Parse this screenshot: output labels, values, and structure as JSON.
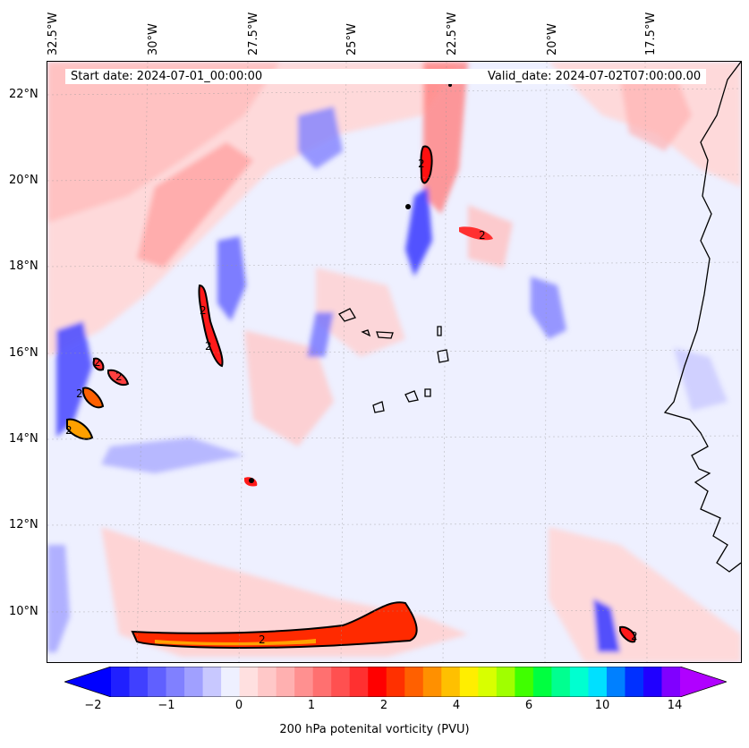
{
  "map": {
    "start_date": "Start date: 2024-07-01_00:00:00",
    "valid_date": "Valid_date: 2024-07-02T07:00:00.00",
    "lon_labels": [
      "32.5°W",
      "30°W",
      "27.5°W",
      "25°W",
      "22.5°W",
      "20°W",
      "17.5°W"
    ],
    "lat_labels": [
      "22°N",
      "20°N",
      "18°N",
      "16°N",
      "14°N",
      "12°N",
      "10°N"
    ],
    "contour_label": "2"
  },
  "colorbar": {
    "label": "200 hPa potenital vorticity (PVU)",
    "ticks": [
      "−2",
      "−1",
      "0",
      "1",
      "2",
      "4",
      "6",
      "10",
      "14"
    ],
    "colors": [
      "#0000ff",
      "#2020ff",
      "#4040ff",
      "#6060ff",
      "#8080ff",
      "#a0a0ff",
      "#c8c8ff",
      "#eef0ff",
      "#ffe0e0",
      "#ffc8c8",
      "#ffb0b0",
      "#ff9090",
      "#ff7070",
      "#ff5050",
      "#ff3030",
      "#ff0000",
      "#ff3000",
      "#ff6000",
      "#ff9000",
      "#ffc000",
      "#ffee00",
      "#d8ff00",
      "#a0ff00",
      "#40ff00",
      "#00ff40",
      "#00ff90",
      "#00ffd0",
      "#00e0ff",
      "#0080ff",
      "#0030ff",
      "#2000ff",
      "#8000ff",
      "#b000ff"
    ]
  }
}
